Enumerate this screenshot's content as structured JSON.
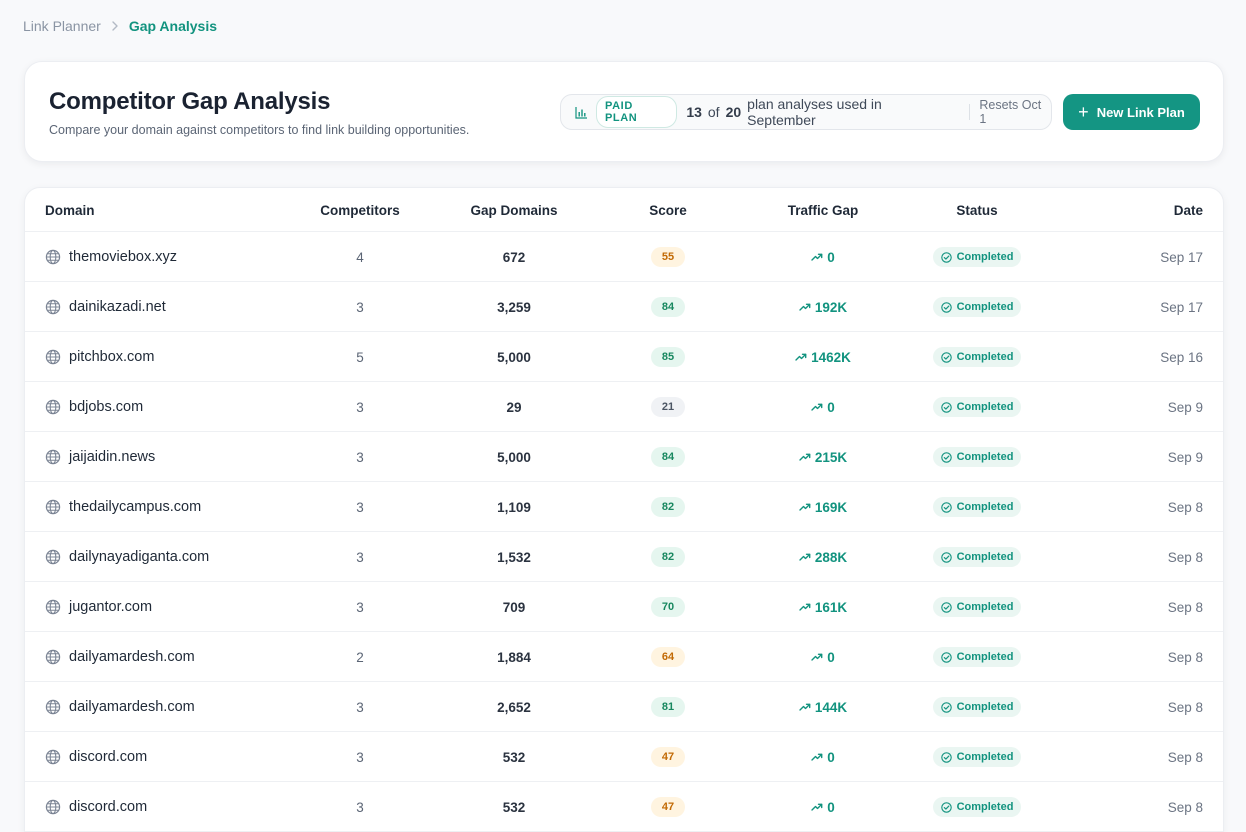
{
  "breadcrumb": {
    "parent": "Link Planner",
    "current": "Gap Analysis"
  },
  "header": {
    "title": "Competitor Gap Analysis",
    "subtitle": "Compare your domain against competitors to find link building opportunities.",
    "plan": {
      "badge": "PAID PLAN",
      "used": "13",
      "of_word": "of",
      "limit": "20",
      "suffix": "plan analyses used in September",
      "resets": "Resets Oct 1"
    },
    "new_plan_button": "New Link Plan"
  },
  "table": {
    "headers": {
      "domain": "Domain",
      "competitors": "Competitors",
      "gap_domains": "Gap Domains",
      "score": "Score",
      "traffic_gap": "Traffic Gap",
      "status": "Status",
      "date": "Date"
    },
    "rows": [
      {
        "domain": "themoviebox.xyz",
        "competitors": "4",
        "gap_domains": "672",
        "score": "55",
        "score_tone": "amber",
        "traffic_gap": "0",
        "status": "Completed",
        "date": "Sep 17"
      },
      {
        "domain": "dainikazadi.net",
        "competitors": "3",
        "gap_domains": "3,259",
        "score": "84",
        "score_tone": "green",
        "traffic_gap": "192K",
        "status": "Completed",
        "date": "Sep 17"
      },
      {
        "domain": "pitchbox.com",
        "competitors": "5",
        "gap_domains": "5,000",
        "score": "85",
        "score_tone": "green",
        "traffic_gap": "1462K",
        "status": "Completed",
        "date": "Sep 16"
      },
      {
        "domain": "bdjobs.com",
        "competitors": "3",
        "gap_domains": "29",
        "score": "21",
        "score_tone": "gray",
        "traffic_gap": "0",
        "status": "Completed",
        "date": "Sep 9"
      },
      {
        "domain": "jaijaidin.news",
        "competitors": "3",
        "gap_domains": "5,000",
        "score": "84",
        "score_tone": "green",
        "traffic_gap": "215K",
        "status": "Completed",
        "date": "Sep 9"
      },
      {
        "domain": "thedailycampus.com",
        "competitors": "3",
        "gap_domains": "1,109",
        "score": "82",
        "score_tone": "green",
        "traffic_gap": "169K",
        "status": "Completed",
        "date": "Sep 8"
      },
      {
        "domain": "dailynayadiganta.com",
        "competitors": "3",
        "gap_domains": "1,532",
        "score": "82",
        "score_tone": "green",
        "traffic_gap": "288K",
        "status": "Completed",
        "date": "Sep 8"
      },
      {
        "domain": "jugantor.com",
        "competitors": "3",
        "gap_domains": "709",
        "score": "70",
        "score_tone": "green",
        "traffic_gap": "161K",
        "status": "Completed",
        "date": "Sep 8"
      },
      {
        "domain": "dailyamardesh.com",
        "competitors": "2",
        "gap_domains": "1,884",
        "score": "64",
        "score_tone": "amber",
        "traffic_gap": "0",
        "status": "Completed",
        "date": "Sep 8"
      },
      {
        "domain": "dailyamardesh.com",
        "competitors": "3",
        "gap_domains": "2,652",
        "score": "81",
        "score_tone": "green",
        "traffic_gap": "144K",
        "status": "Completed",
        "date": "Sep 8"
      },
      {
        "domain": "discord.com",
        "competitors": "3",
        "gap_domains": "532",
        "score": "47",
        "score_tone": "amber",
        "traffic_gap": "0",
        "status": "Completed",
        "date": "Sep 8"
      },
      {
        "domain": "discord.com",
        "competitors": "3",
        "gap_domains": "532",
        "score": "47",
        "score_tone": "amber",
        "traffic_gap": "0",
        "status": "Completed",
        "date": "Sep 8"
      }
    ]
  },
  "colors": {
    "accent": "#12937f",
    "button": "#149583",
    "score_green_bg": "#e5f6ef",
    "score_amber_bg": "#fff4e0",
    "score_gray_bg": "#f0f2f5"
  },
  "icons": {
    "breadcrumb_separator": "chevron-right-icon",
    "plan": "bar-chart-icon",
    "new_plan": "plus-icon",
    "domain": "globe-icon",
    "traffic": "trending-up-icon",
    "status": "check-circle-icon"
  }
}
